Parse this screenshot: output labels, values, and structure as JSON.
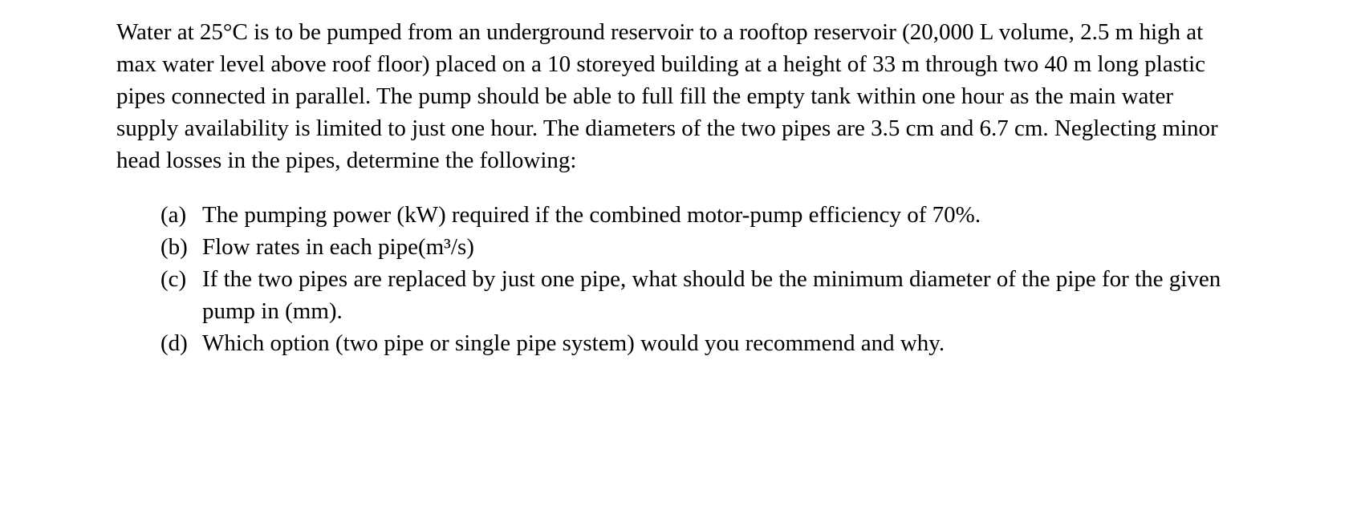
{
  "typography": {
    "font_family": "Times New Roman",
    "font_size_pt": 22,
    "line_height": 1.38,
    "text_color": "#000000",
    "background_color": "#ffffff"
  },
  "intro": "Water at 25°C is to be pumped from an underground reservoir to a rooftop reservoir (20,000 L volume, 2.5 m high at max water level above roof floor) placed on a 10 storeyed building at a height of 33 m through two 40 m long plastic pipes connected in parallel. The pump should be able to full fill the empty tank within one hour as the main water supply availability is limited to just one hour. The diameters of the two pipes are 3.5 cm and 6.7 cm. Neglecting minor head losses in the pipes, determine the following:",
  "items": [
    {
      "marker": "(a)",
      "text": "The pumping power (kW) required if the combined motor-pump efficiency of 70%."
    },
    {
      "marker": "(b)",
      "text": "Flow rates in each pipe(m³/s)"
    },
    {
      "marker": "(c)",
      "text": "If the two pipes are replaced by just one pipe, what should be the minimum diameter of the pipe for the given pump in (mm)."
    },
    {
      "marker": "(d)",
      "text": "Which option (two pipe or single pipe system) would you recommend and why."
    }
  ]
}
